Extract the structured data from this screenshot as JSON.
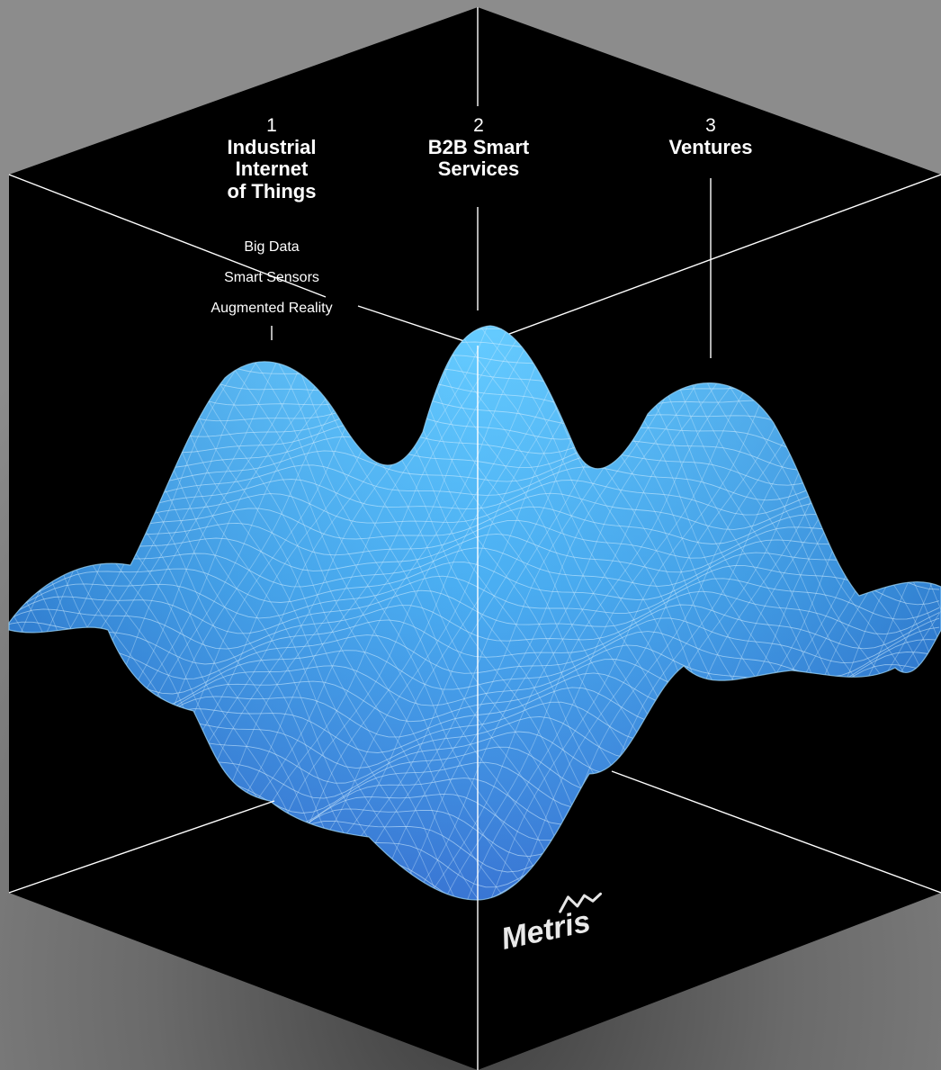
{
  "pillars": [
    {
      "number": "1",
      "title": "Industrial Internet of Things",
      "title_lines": [
        "Industrial",
        "Internet",
        "of Things"
      ]
    },
    {
      "number": "2",
      "title": "B2B Smart Services",
      "title_lines": [
        "B2B Smart",
        "Services"
      ]
    },
    {
      "number": "3",
      "title": "Ventures",
      "title_lines": [
        "Ventures"
      ]
    }
  ],
  "topics": [
    "Big Data",
    "Smart Sensors",
    "Augmented Reality"
  ],
  "brand": {
    "name": "Metris"
  },
  "colors": {
    "background_outer": "#8a8a8a",
    "background_inner": "#4a4a4a",
    "cube_faces": "#000000",
    "cube_edges": "#ffffff",
    "surface_light": "#4fc3ff",
    "surface_dark": "#2a6fd6",
    "mesh": "#d9f1ff",
    "text": "#ffffff"
  }
}
